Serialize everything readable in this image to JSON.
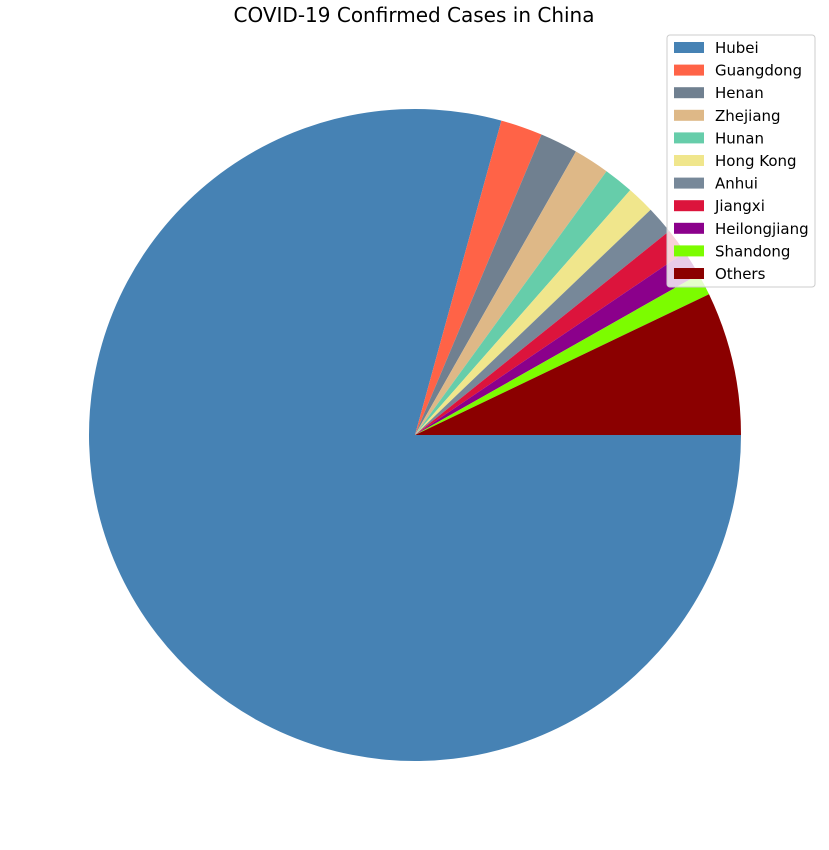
{
  "chart_data": {
    "type": "pie",
    "title": "COVID-19 Confirmed Cases in China",
    "legend_position": "top-right",
    "start_angle_deg": 0,
    "direction": "counterclockwise",
    "slices": [
      {
        "label": "Hubei",
        "value": 80.3,
        "color": "#4682b4"
      },
      {
        "label": "Guangdong",
        "value": 2.1,
        "color": "#ff6347"
      },
      {
        "label": "Henan",
        "value": 1.9,
        "color": "#708090"
      },
      {
        "label": "Zhejiang",
        "value": 1.8,
        "color": "#deb887"
      },
      {
        "label": "Hunan",
        "value": 1.5,
        "color": "#66cdaa"
      },
      {
        "label": "Hong Kong",
        "value": 1.4,
        "color": "#f0e68c"
      },
      {
        "label": "Anhui",
        "value": 1.4,
        "color": "#778899"
      },
      {
        "label": "Jiangxi",
        "value": 1.3,
        "color": "#dc143c"
      },
      {
        "label": "Heilongjiang",
        "value": 1.3,
        "color": "#8b008b"
      },
      {
        "label": "Shandong",
        "value": 1.1,
        "color": "#7cfc00"
      },
      {
        "label": "Others",
        "value": 7.2,
        "color": "#8b0000"
      }
    ]
  }
}
